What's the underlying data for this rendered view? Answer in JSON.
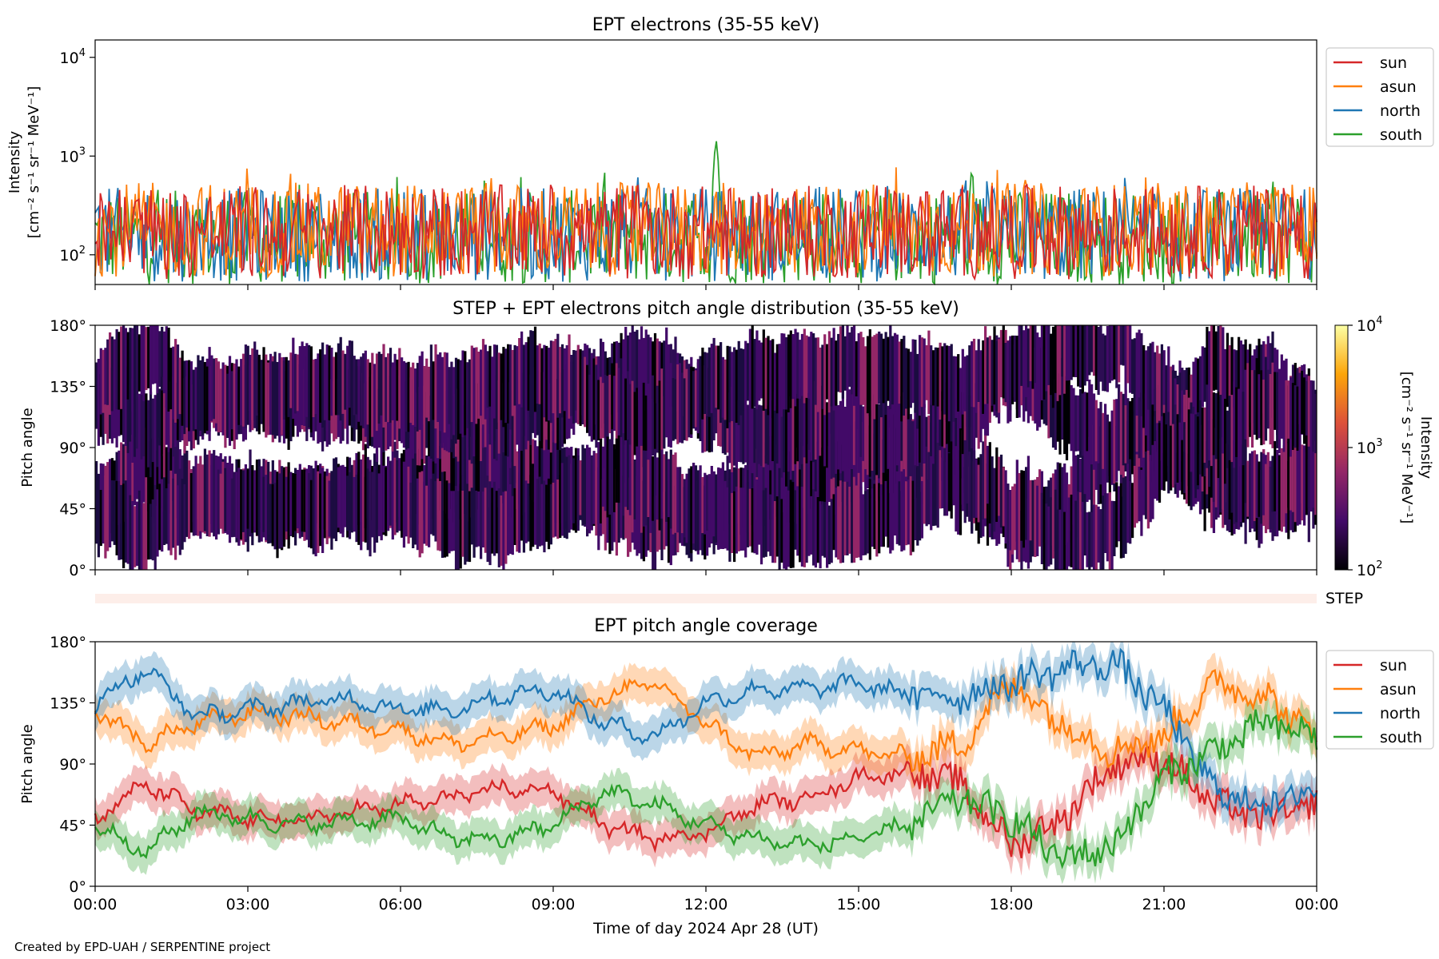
{
  "footer": "Created by EPD-UAH / SERPENTINE project",
  "xlabel": "Time of day 2024 Apr 28 (UT)",
  "time_ticks": [
    "00:00",
    "03:00",
    "06:00",
    "09:00",
    "12:00",
    "15:00",
    "18:00",
    "21:00",
    "00:00"
  ],
  "colors": {
    "sun": "#d62728",
    "asun": "#ff7f0e",
    "north": "#1f77b4",
    "south": "#2ca02c"
  },
  "chart_data": [
    {
      "type": "line",
      "title": "EPT electrons (35-55 keV)",
      "ylabel_line1": "Intensity",
      "ylabel_line2": "[cm⁻² s⁻¹ sr⁻¹ MeV⁻¹]",
      "y_scale": "log",
      "ylim": [
        50,
        15000
      ],
      "y_ticks": [
        {
          "value": 100,
          "base": "10",
          "exp": "2"
        },
        {
          "value": 1000,
          "base": "10",
          "exp": "3"
        },
        {
          "value": 10000,
          "base": "10",
          "exp": "4"
        }
      ],
      "x_unit": "hours",
      "xlim": [
        0,
        24
      ],
      "legend_position": "outside-right",
      "series": [
        {
          "name": "sun",
          "color": "#d62728",
          "typical": 170,
          "spike_max": 520
        },
        {
          "name": "asun",
          "color": "#ff7f0e",
          "typical": 180,
          "spike_max": 800
        },
        {
          "name": "north",
          "color": "#1f77b4",
          "typical": 160,
          "spike_max": 620
        },
        {
          "name": "south",
          "color": "#2ca02c",
          "typical": 150,
          "spike_max": 700,
          "peak": {
            "x": 12.2,
            "y": 1500
          }
        }
      ]
    },
    {
      "type": "heatmap",
      "title": "STEP + EPT electrons pitch angle distribution (35-55 keV)",
      "ylabel": "Pitch angle",
      "ylim": [
        0,
        180
      ],
      "y_ticks": [
        "0°",
        "45°",
        "90°",
        "135°",
        "180°"
      ],
      "xlim": [
        0,
        24
      ],
      "colorbar": {
        "label_line1": "Intensity",
        "label_line2": "[cm⁻² s⁻¹ sr⁻¹ MeV⁻¹]",
        "scale": "log",
        "range": [
          100,
          10000
        ],
        "ticks": [
          {
            "value": 100,
            "base": "10",
            "exp": "2"
          },
          {
            "value": 1000,
            "base": "10",
            "exp": "3"
          },
          {
            "value": 10000,
            "base": "10",
            "exp": "4"
          }
        ],
        "colormap": [
          "#000004",
          "#420a68",
          "#932667",
          "#dd513a",
          "#fca50a",
          "#fcffa4"
        ]
      },
      "typical_intensity": 250
    },
    {
      "type": "bar",
      "label": "STEP",
      "color": "#fdeee9"
    },
    {
      "type": "area",
      "title": "EPT pitch angle coverage",
      "ylabel": "Pitch angle",
      "ylim": [
        0,
        180
      ],
      "y_ticks": [
        "0°",
        "45°",
        "90°",
        "135°",
        "180°"
      ],
      "xlim": [
        0,
        24
      ],
      "legend_position": "outside-right",
      "series": [
        {
          "name": "sun",
          "color": "#d62728",
          "x": [
            0,
            1,
            2,
            3,
            4,
            5,
            6,
            7,
            8,
            9,
            10,
            11,
            12,
            13,
            14,
            15,
            16,
            17,
            18,
            19,
            20,
            21,
            22,
            23,
            24
          ],
          "y": [
            50,
            75,
            55,
            50,
            48,
            55,
            60,
            65,
            72,
            70,
            45,
            35,
            40,
            60,
            65,
            80,
            85,
            75,
            30,
            50,
            90,
            95,
            60,
            50,
            60
          ]
        },
        {
          "name": "asun",
          "color": "#ff7f0e",
          "x": [
            0,
            1,
            2,
            3,
            4,
            5,
            6,
            7,
            8,
            9,
            10,
            11,
            12,
            13,
            14,
            15,
            16,
            17,
            18,
            19,
            20,
            21,
            22,
            23,
            24
          ],
          "y": [
            130,
            105,
            120,
            128,
            125,
            120,
            115,
            105,
            110,
            118,
            140,
            150,
            120,
            95,
            105,
            100,
            95,
            105,
            150,
            120,
            100,
            110,
            150,
            140,
            110
          ]
        },
        {
          "name": "north",
          "color": "#1f77b4",
          "x": [
            0,
            1,
            2,
            3,
            4,
            5,
            6,
            7,
            8,
            9,
            10,
            11,
            12,
            13,
            14,
            15,
            16,
            17,
            18,
            19,
            20,
            21,
            22,
            23,
            24
          ],
          "y": [
            135,
            160,
            125,
            130,
            135,
            138,
            130,
            130,
            140,
            145,
            120,
            110,
            135,
            145,
            145,
            150,
            140,
            140,
            150,
            160,
            165,
            130,
            70,
            60,
            70
          ]
        },
        {
          "name": "south",
          "color": "#2ca02c",
          "x": [
            0,
            1,
            2,
            3,
            4,
            5,
            6,
            7,
            8,
            9,
            10,
            11,
            12,
            13,
            14,
            15,
            16,
            17,
            18,
            19,
            20,
            21,
            22,
            23,
            24
          ],
          "y": [
            45,
            25,
            55,
            50,
            45,
            48,
            50,
            35,
            35,
            45,
            70,
            60,
            45,
            35,
            30,
            35,
            45,
            65,
            50,
            20,
            30,
            80,
            100,
            120,
            110
          ]
        }
      ]
    }
  ]
}
